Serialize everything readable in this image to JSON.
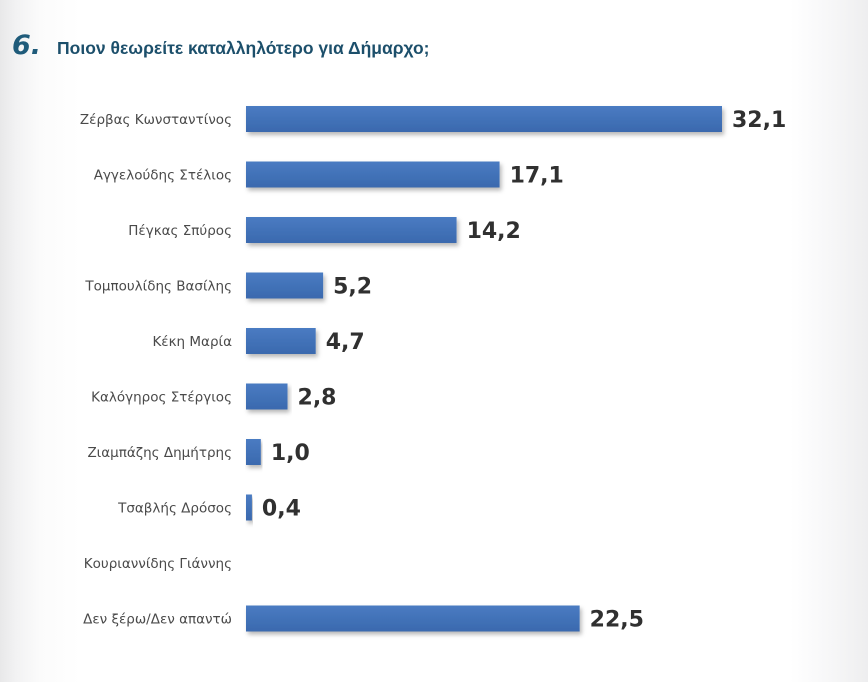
{
  "header": {
    "number": "6.",
    "title": "Ποιον θεωρείτε καταλληλότερο για Δήμαρχο;"
  },
  "colors": {
    "bar": "#4a7bc2",
    "bar_dark": "#3a69ae",
    "title": "#1c4f6b"
  },
  "chart_data": {
    "type": "bar",
    "orientation": "horizontal",
    "title": "Ποιον θεωρείτε καταλληλότερο για Δήμαρχο;",
    "xlabel": "",
    "ylabel": "",
    "xlim": [
      0,
      32.1
    ],
    "categories": [
      "Ζέρβας Κωνσταντίνος",
      "Αγγελούδης Στέλιος",
      "Πέγκας Σπύρος",
      "Τομπουλίδης Βασίλης",
      "Κέκη Μαρία",
      "Καλόγηρος Στέργιος",
      "Ζιαμπάζης Δημήτρης",
      "Τσαβλής Δρόσος",
      "Κουριαννίδης Γιάννης",
      "Δεν ξέρω/Δεν απαντώ"
    ],
    "values": [
      32.1,
      17.1,
      14.2,
      5.2,
      4.7,
      2.8,
      1.0,
      0.4,
      null,
      22.5
    ],
    "value_labels": [
      "32,1",
      "17,1",
      "14,2",
      "5,2",
      "4,7",
      "2,8",
      "1,0",
      "0,4",
      "",
      "22,5"
    ]
  }
}
